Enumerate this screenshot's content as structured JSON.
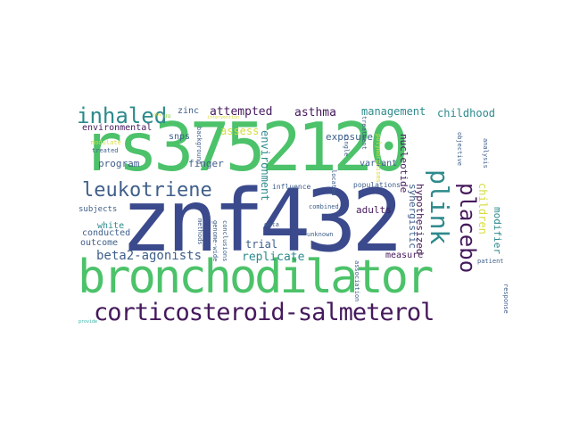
{
  "colors": {
    "dark_blue": "#3b4a8c",
    "green": "#4cc26a",
    "purple": "#45195c",
    "teal": "#2d8a8c",
    "slate": "#3f5f8a",
    "light_green": "#8fd24a",
    "yellow": "#d6dc3a",
    "cyan": "#2fb3a6"
  },
  "words": [
    {
      "text": "rs3752120",
      "color": "green"
    },
    {
      "text": "znf432",
      "color": "dark_blue"
    },
    {
      "text": "bronchodilator",
      "color": "green"
    },
    {
      "text": "corticosteroid-salmeterol",
      "color": "purple"
    },
    {
      "text": "inhaled",
      "color": "teal"
    },
    {
      "text": "leukotriene",
      "color": "slate"
    },
    {
      "text": "placebo",
      "color": "purple"
    },
    {
      "text": "plink",
      "color": "teal"
    },
    {
      "text": "beta2-agonists",
      "color": "slate"
    },
    {
      "text": "replicate",
      "color": "teal"
    },
    {
      "text": "attempted",
      "color": "purple"
    },
    {
      "text": "asthma",
      "color": "purple"
    },
    {
      "text": "management",
      "color": "teal"
    },
    {
      "text": "childhood",
      "color": "teal"
    },
    {
      "text": "environmental",
      "color": "purple"
    },
    {
      "text": "snps",
      "color": "slate"
    },
    {
      "text": "assess",
      "color": "yellow"
    },
    {
      "text": "exposure",
      "color": "slate"
    },
    {
      "text": "program",
      "color": "slate"
    },
    {
      "text": "finger",
      "color": "slate"
    },
    {
      "text": "variant",
      "color": "slate"
    },
    {
      "text": "subjects",
      "color": "slate"
    },
    {
      "text": "white",
      "color": "teal"
    },
    {
      "text": "conducted",
      "color": "slate"
    },
    {
      "text": "outcome",
      "color": "slate"
    },
    {
      "text": "trial",
      "color": "slate"
    },
    {
      "text": "adults",
      "color": "purple"
    },
    {
      "text": "measure",
      "color": "purple"
    },
    {
      "text": "zinc",
      "color": "slate"
    },
    {
      "text": "populations",
      "color": "slate"
    },
    {
      "text": "influence",
      "color": "slate"
    },
    {
      "text": "combined",
      "color": "slate"
    },
    {
      "text": "unknown",
      "color": "slate"
    },
    {
      "text": "data",
      "color": "slate"
    },
    {
      "text": "treated",
      "color": "slate"
    },
    {
      "text": "modulate",
      "color": "yellow"
    },
    {
      "text": "environment",
      "color": "teal"
    },
    {
      "text": "synergistic",
      "color": "slate"
    },
    {
      "text": "hypothesized",
      "color": "purple"
    },
    {
      "text": "nucleotide",
      "color": "purple"
    },
    {
      "text": "children",
      "color": "yellow"
    },
    {
      "text": "modifier",
      "color": "teal"
    },
    {
      "text": "background",
      "color": "slate"
    },
    {
      "text": "methods",
      "color": "slate"
    },
    {
      "text": "genome-wide",
      "color": "slate"
    },
    {
      "text": "conclusions",
      "color": "slate"
    },
    {
      "text": "located",
      "color": "slate"
    },
    {
      "text": "single",
      "color": "slate"
    },
    {
      "text": "treatment",
      "color": "slate"
    },
    {
      "text": "polymorphisms",
      "color": "yellow"
    },
    {
      "text": "objective",
      "color": "slate"
    },
    {
      "text": "analysis",
      "color": "slate"
    },
    {
      "text": "association",
      "color": "slate"
    },
    {
      "text": "response",
      "color": "slate"
    },
    {
      "text": "patient",
      "color": "slate"
    },
    {
      "text": "intervention",
      "color": "yellow"
    },
    {
      "text": "provide",
      "color": "cyan"
    },
    {
      "text": "gov",
      "color": "yellow"
    },
    {
      "text": "uu",
      "color": "light_green"
    }
  ]
}
